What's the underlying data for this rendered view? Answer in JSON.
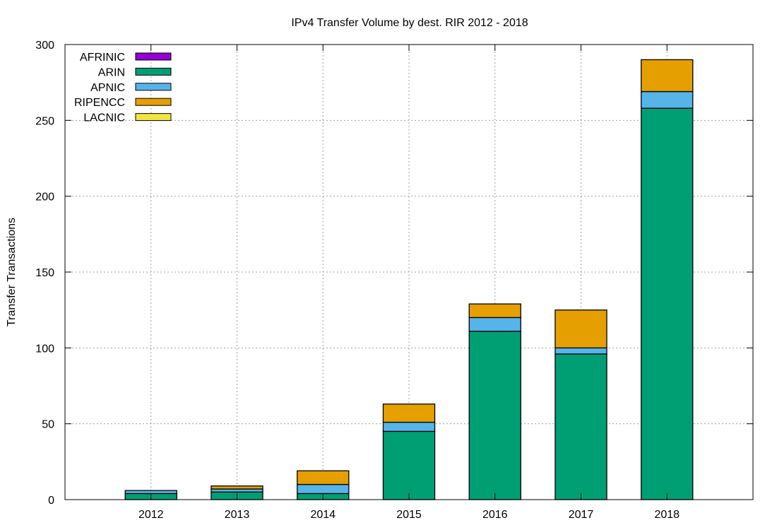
{
  "chart_data": {
    "type": "bar",
    "stacked": true,
    "title": "IPv4 Transfer Volume by dest. RIR 2012 - 2018",
    "xlabel": "",
    "ylabel": "Transfer Transactions",
    "categories": [
      "2012",
      "2013",
      "2014",
      "2015",
      "2016",
      "2017",
      "2018"
    ],
    "xlim": [
      2011,
      2019
    ],
    "ylim": [
      0,
      300
    ],
    "yticks": [
      0,
      50,
      100,
      150,
      200,
      250,
      300
    ],
    "grid": true,
    "legend_position": "top-left",
    "series": [
      {
        "name": "AFRINIC",
        "color": "#9400d3",
        "values": [
          0,
          0,
          0,
          0,
          0,
          0,
          0
        ]
      },
      {
        "name": "ARIN",
        "color": "#009e73",
        "values": [
          4,
          5,
          4,
          45,
          111,
          96,
          258
        ]
      },
      {
        "name": "APNIC",
        "color": "#56b4e9",
        "values": [
          2,
          2,
          6,
          6,
          9,
          4,
          11
        ]
      },
      {
        "name": "RIPENCC",
        "color": "#e69f00",
        "values": [
          0,
          2,
          9,
          12,
          9,
          25,
          21
        ]
      },
      {
        "name": "LACNIC",
        "color": "#f0e442",
        "values": [
          0,
          0,
          0,
          0,
          0,
          0,
          0
        ]
      }
    ]
  }
}
